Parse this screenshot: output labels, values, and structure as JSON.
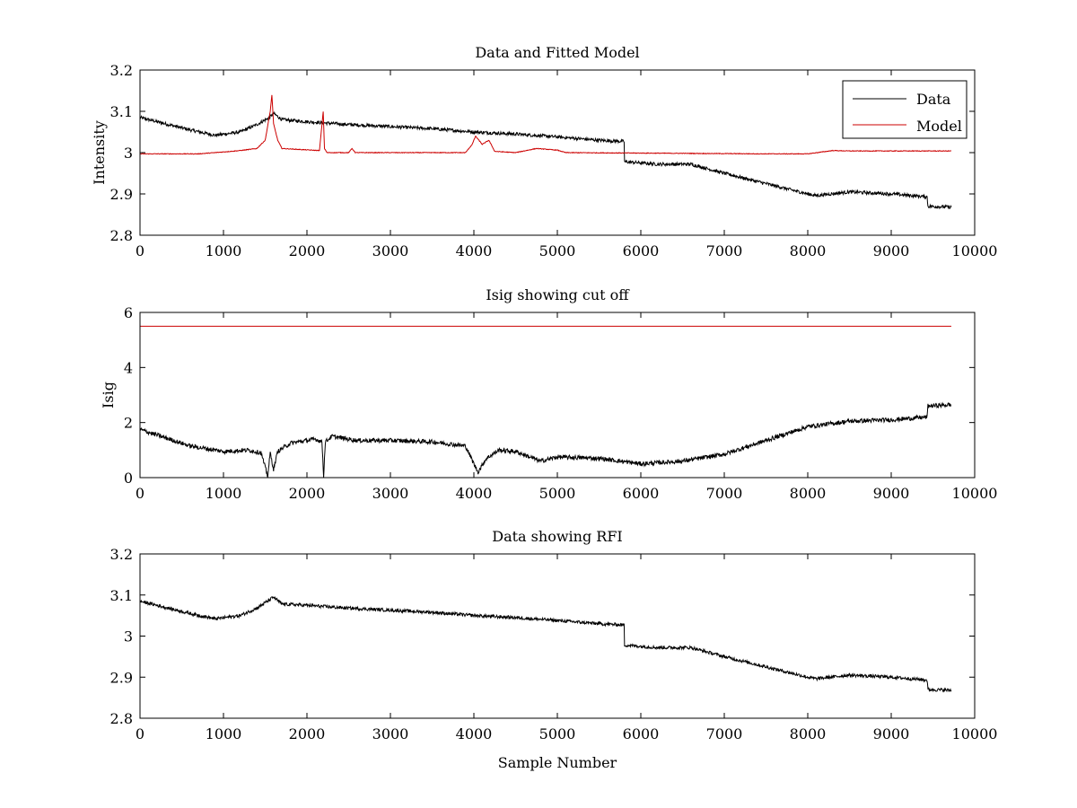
{
  "chart_data": [
    {
      "type": "line",
      "title": "Data and Fitted Model",
      "xlabel": "",
      "ylabel": "Intensity",
      "xlim": [
        0,
        10000
      ],
      "ylim": [
        2.8,
        3.2
      ],
      "xticks": [
        "0",
        "1000",
        "2000",
        "3000",
        "4000",
        "5000",
        "6000",
        "7000",
        "8000",
        "9000",
        "10000"
      ],
      "yticks": [
        "2.8",
        "2.9",
        "3",
        "3.1",
        "3.2"
      ],
      "legend": {
        "placement": "top-right",
        "entries": [
          "Data",
          "Model"
        ]
      },
      "series": [
        {
          "name": "Data",
          "color": "#000000",
          "noise": 0.004,
          "points": [
            [
              0,
              3.085
            ],
            [
              300,
              3.07
            ],
            [
              600,
              3.055
            ],
            [
              900,
              3.042
            ],
            [
              1200,
              3.05
            ],
            [
              1400,
              3.068
            ],
            [
              1550,
              3.085
            ],
            [
              1600,
              3.095
            ],
            [
              1700,
              3.08
            ],
            [
              2000,
              3.075
            ],
            [
              2200,
              3.072
            ],
            [
              2500,
              3.068
            ],
            [
              3000,
              3.063
            ],
            [
              3500,
              3.058
            ],
            [
              4000,
              3.05
            ],
            [
              4500,
              3.045
            ],
            [
              5000,
              3.038
            ],
            [
              5500,
              3.03
            ],
            [
              5800,
              3.027
            ],
            [
              5805,
              2.978
            ],
            [
              6200,
              2.972
            ],
            [
              6600,
              2.972
            ],
            [
              7000,
              2.95
            ],
            [
              7500,
              2.925
            ],
            [
              8000,
              2.9
            ],
            [
              8100,
              2.896
            ],
            [
              8500,
              2.905
            ],
            [
              9000,
              2.9
            ],
            [
              9430,
              2.893
            ],
            [
              9440,
              2.87
            ],
            [
              9720,
              2.868
            ]
          ]
        },
        {
          "name": "Model",
          "color": "#cc0000",
          "noise": 0.0008,
          "points": [
            [
              0,
              2.997
            ],
            [
              700,
              2.997
            ],
            [
              900,
              3.0
            ],
            [
              1200,
              3.005
            ],
            [
              1400,
              3.01
            ],
            [
              1500,
              3.03
            ],
            [
              1560,
              3.1
            ],
            [
              1580,
              3.14
            ],
            [
              1600,
              3.07
            ],
            [
              1650,
              3.03
            ],
            [
              1700,
              3.01
            ],
            [
              2150,
              3.005
            ],
            [
              2195,
              3.1
            ],
            [
              2210,
              3.01
            ],
            [
              2240,
              3.0
            ],
            [
              2500,
              3.0
            ],
            [
              2540,
              3.01
            ],
            [
              2580,
              3.0
            ],
            [
              3900,
              3.0
            ],
            [
              3980,
              3.02
            ],
            [
              4020,
              3.04
            ],
            [
              4100,
              3.02
            ],
            [
              4180,
              3.03
            ],
            [
              4250,
              3.003
            ],
            [
              4500,
              3.0
            ],
            [
              4750,
              3.01
            ],
            [
              5000,
              3.006
            ],
            [
              5100,
              3.0
            ],
            [
              7500,
              2.997
            ],
            [
              8000,
              2.997
            ],
            [
              8300,
              3.005
            ],
            [
              8500,
              3.004
            ],
            [
              9720,
              3.004
            ]
          ]
        }
      ]
    },
    {
      "type": "line",
      "title": "Isig showing cut off",
      "xlabel": "",
      "ylabel": "Isig",
      "xlim": [
        0,
        10000
      ],
      "ylim": [
        0,
        6
      ],
      "xticks": [
        "0",
        "1000",
        "2000",
        "3000",
        "4000",
        "5000",
        "6000",
        "7000",
        "8000",
        "9000",
        "10000"
      ],
      "yticks": [
        "0",
        "2",
        "4",
        "6"
      ],
      "series": [
        {
          "color": "#000000",
          "noise": 0.08,
          "points": [
            [
              0,
              1.75
            ],
            [
              300,
              1.45
            ],
            [
              600,
              1.15
            ],
            [
              1000,
              0.95
            ],
            [
              1300,
              1.0
            ],
            [
              1450,
              0.9
            ],
            [
              1530,
              0.05
            ],
            [
              1560,
              0.9
            ],
            [
              1600,
              0.3
            ],
            [
              1650,
              0.95
            ],
            [
              1800,
              1.25
            ],
            [
              2100,
              1.4
            ],
            [
              2180,
              1.3
            ],
            [
              2200,
              0.05
            ],
            [
              2220,
              1.3
            ],
            [
              2300,
              1.5
            ],
            [
              2600,
              1.35
            ],
            [
              3000,
              1.35
            ],
            [
              3500,
              1.3
            ],
            [
              3900,
              1.15
            ],
            [
              4000,
              0.5
            ],
            [
              4050,
              0.2
            ],
            [
              4150,
              0.7
            ],
            [
              4300,
              1.0
            ],
            [
              4500,
              0.95
            ],
            [
              4800,
              0.6
            ],
            [
              5000,
              0.75
            ],
            [
              5500,
              0.7
            ],
            [
              6000,
              0.5
            ],
            [
              6500,
              0.6
            ],
            [
              7000,
              0.85
            ],
            [
              7500,
              1.35
            ],
            [
              8000,
              1.85
            ],
            [
              8500,
              2.05
            ],
            [
              9000,
              2.1
            ],
            [
              9430,
              2.2
            ],
            [
              9440,
              2.6
            ],
            [
              9720,
              2.65
            ]
          ]
        },
        {
          "color": "#cc0000",
          "noise": 0,
          "points": [
            [
              0,
              5.5
            ],
            [
              9720,
              5.5
            ]
          ]
        }
      ]
    },
    {
      "type": "line",
      "title": "Data showing RFI",
      "xlabel": "Sample Number",
      "ylabel": "",
      "xlim": [
        0,
        10000
      ],
      "ylim": [
        2.8,
        3.2
      ],
      "xticks": [
        "0",
        "1000",
        "2000",
        "3000",
        "4000",
        "5000",
        "6000",
        "7000",
        "8000",
        "9000",
        "10000"
      ],
      "yticks": [
        "2.8",
        "2.9",
        "3",
        "3.1",
        "3.2"
      ],
      "series": [
        {
          "color": "#000000",
          "noise": 0.004,
          "points": [
            [
              0,
              3.085
            ],
            [
              300,
              3.07
            ],
            [
              600,
              3.055
            ],
            [
              900,
              3.042
            ],
            [
              1200,
              3.05
            ],
            [
              1400,
              3.068
            ],
            [
              1550,
              3.088
            ],
            [
              1600,
              3.095
            ],
            [
              1700,
              3.078
            ],
            [
              2000,
              3.075
            ],
            [
              2200,
              3.072
            ],
            [
              2500,
              3.068
            ],
            [
              3000,
              3.063
            ],
            [
              3500,
              3.058
            ],
            [
              4000,
              3.05
            ],
            [
              4500,
              3.045
            ],
            [
              5000,
              3.038
            ],
            [
              5500,
              3.03
            ],
            [
              5800,
              3.027
            ],
            [
              5805,
              2.978
            ],
            [
              6200,
              2.972
            ],
            [
              6600,
              2.972
            ],
            [
              7000,
              2.95
            ],
            [
              7500,
              2.925
            ],
            [
              8000,
              2.9
            ],
            [
              8100,
              2.896
            ],
            [
              8500,
              2.905
            ],
            [
              9000,
              2.9
            ],
            [
              9430,
              2.893
            ],
            [
              9440,
              2.87
            ],
            [
              9720,
              2.868
            ]
          ]
        }
      ]
    }
  ]
}
